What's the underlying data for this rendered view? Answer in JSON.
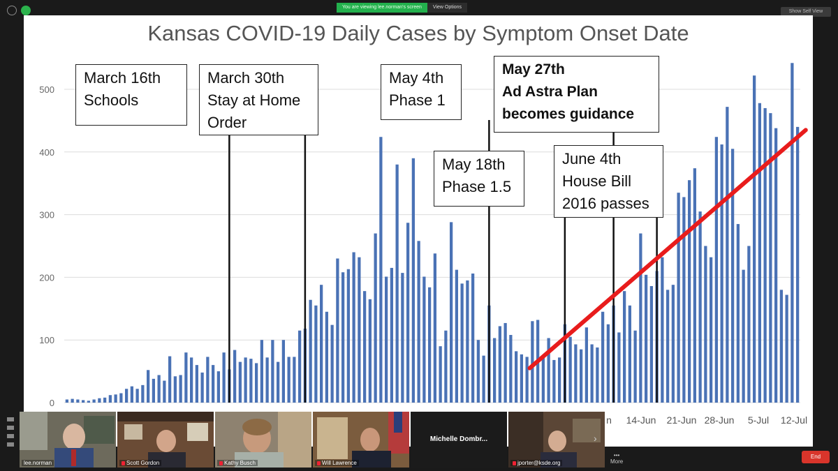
{
  "window": {
    "sharing_banner": "You are viewing lee.norman's screen",
    "view_options": "View Options",
    "show_self_view": "Show Self View",
    "more_label": "More",
    "end_label": "End"
  },
  "chart_data": {
    "type": "bar",
    "title": "Kansas COVID-19 Daily Cases by Symptom Onset Date",
    "ylim": [
      0,
      550
    ],
    "yticks": [
      0,
      100,
      200,
      300,
      400,
      500
    ],
    "x_tick_labels": [
      "14-Jun",
      "21-Jun",
      "28-Jun",
      "5-Jul",
      "12-Jul"
    ],
    "x_tick_label_visible_partial": "n",
    "bar_color": "#4a72b5",
    "trend_line_color": "#e81c1c",
    "values": [
      5,
      6,
      5,
      4,
      3,
      5,
      7,
      8,
      12,
      13,
      15,
      22,
      26,
      22,
      28,
      52,
      38,
      44,
      35,
      74,
      42,
      44,
      80,
      72,
      60,
      48,
      73,
      60,
      50,
      80,
      53,
      84,
      65,
      72,
      70,
      63,
      100,
      72,
      100,
      65,
      100,
      73,
      73,
      115,
      118,
      164,
      155,
      188,
      145,
      124,
      230,
      208,
      213,
      240,
      232,
      178,
      165,
      270,
      424,
      201,
      215,
      380,
      207,
      287,
      390,
      258,
      201,
      184,
      238,
      90,
      115,
      288,
      212,
      190,
      195,
      206,
      100,
      75,
      155,
      103,
      122,
      127,
      108,
      82,
      77,
      73,
      130,
      132,
      75,
      103,
      68,
      72,
      125,
      105,
      93,
      85,
      120,
      93,
      88,
      145,
      125,
      155,
      112,
      178,
      155,
      115,
      270,
      204,
      186,
      210,
      232,
      180,
      188,
      335,
      328,
      355,
      374,
      305,
      250,
      232,
      424,
      412,
      472,
      405,
      285,
      212,
      250,
      522,
      478,
      470,
      462,
      438,
      180,
      172,
      542,
      440
    ],
    "trend_line": {
      "start_day_index": 86,
      "end_day_index": 137,
      "start_value": 55,
      "end_value": 435
    },
    "annotations": [
      {
        "lines": [
          "March 16th",
          "Schools"
        ],
        "day_index": 30,
        "bold": false
      },
      {
        "lines": [
          "March 30th",
          "Stay at Home",
          "Order"
        ],
        "day_index": 44,
        "bold": false
      },
      {
        "lines": [
          "May 4th",
          "Phase 1"
        ],
        "day_index": 78,
        "bold": false
      },
      {
        "lines": [
          "May 18th",
          "Phase 1.5"
        ],
        "day_index": 92,
        "bold": false
      },
      {
        "lines": [
          "May 27th",
          "Ad Astra Plan",
          "becomes guidance"
        ],
        "day_index": 101,
        "bold": true
      },
      {
        "lines": [
          "June 4th",
          "House Bill",
          "2016 passes"
        ],
        "day_index": 109,
        "bold": false
      }
    ]
  },
  "participants": [
    {
      "name": "lee.norman",
      "muted": false
    },
    {
      "name": "Scott Gordon",
      "muted": true
    },
    {
      "name": "Kathy Busch",
      "muted": true
    },
    {
      "name": "Will Lawrence",
      "muted": true
    },
    {
      "name": "Michelle  Dombr...",
      "muted": true
    },
    {
      "name": "jporter@ksde.org",
      "muted": true
    }
  ]
}
